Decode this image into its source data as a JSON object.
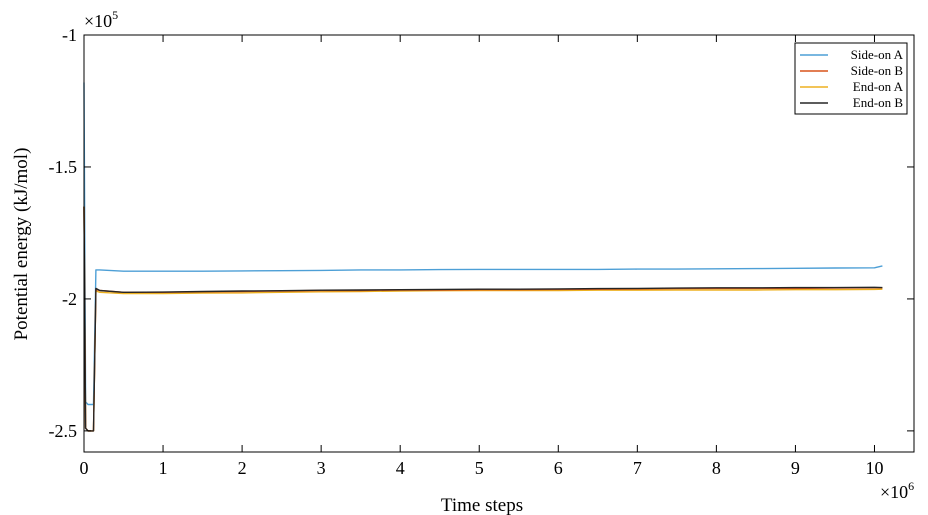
{
  "chart_data": {
    "type": "line",
    "title": "",
    "xlabel": "Time steps",
    "ylabel": "Potential energy (kJ/mol)",
    "x_multiplier_label": "×10",
    "x_multiplier_exp": "6",
    "y_multiplier_label": "×10",
    "y_multiplier_exp": "5",
    "xlim": [
      0,
      10.5
    ],
    "ylim": [
      -2.58,
      -1.0
    ],
    "x_ticks": [
      0,
      1,
      2,
      3,
      4,
      5,
      6,
      7,
      8,
      9,
      10
    ],
    "x_tick_labels": [
      "0",
      "1",
      "2",
      "3",
      "4",
      "5",
      "6",
      "7",
      "8",
      "9",
      "10"
    ],
    "y_ticks": [
      -1.0,
      -1.5,
      -2.0,
      -2.5
    ],
    "y_tick_labels": [
      "-1",
      "-1.5",
      "-2",
      "-2.5"
    ],
    "grid": false,
    "legend_position": "top-right",
    "series": [
      {
        "name": "Side-on A",
        "color": "#4d9fd6",
        "x": [
          0,
          0.02,
          0.05,
          0.12,
          0.15,
          0.2,
          0.5,
          1.0,
          1.5,
          2.0,
          2.5,
          3.0,
          3.5,
          4.0,
          4.5,
          5.0,
          5.5,
          6.0,
          6.5,
          7.0,
          7.5,
          8.0,
          8.5,
          9.0,
          9.5,
          10.0,
          10.1
        ],
        "y": [
          -1.18,
          -2.39,
          -2.4,
          -2.4,
          -1.89,
          -1.89,
          -1.895,
          -1.895,
          -1.895,
          -1.894,
          -1.893,
          -1.892,
          -1.89,
          -1.89,
          -1.889,
          -1.888,
          -1.888,
          -1.888,
          -1.888,
          -1.887,
          -1.887,
          -1.886,
          -1.885,
          -1.884,
          -1.883,
          -1.882,
          -1.875
        ]
      },
      {
        "name": "Side-on B",
        "color": "#d9541a",
        "x": [
          0,
          0.02,
          0.05,
          0.12,
          0.15,
          0.2,
          0.5,
          1.0,
          1.5,
          2.0,
          2.5,
          3.0,
          3.5,
          4.0,
          4.5,
          5.0,
          5.5,
          6.0,
          6.5,
          7.0,
          7.5,
          8.0,
          8.5,
          9.0,
          9.5,
          10.0,
          10.1
        ],
        "y": [
          -1.65,
          -2.49,
          -2.5,
          -2.5,
          -1.965,
          -1.968,
          -1.975,
          -1.975,
          -1.973,
          -1.972,
          -1.97,
          -1.968,
          -1.968,
          -1.966,
          -1.966,
          -1.965,
          -1.965,
          -1.964,
          -1.963,
          -1.962,
          -1.961,
          -1.96,
          -1.96,
          -1.96,
          -1.959,
          -1.958,
          -1.958
        ]
      },
      {
        "name": "End-on A",
        "color": "#edb120",
        "x": [
          0,
          0.02,
          0.05,
          0.12,
          0.15,
          0.2,
          0.5,
          1.0,
          1.5,
          2.0,
          2.5,
          3.0,
          3.5,
          4.0,
          4.5,
          5.0,
          5.5,
          6.0,
          6.5,
          7.0,
          7.5,
          8.0,
          8.5,
          9.0,
          9.5,
          10.0,
          10.1
        ],
        "y": [
          -1.65,
          -2.49,
          -2.5,
          -2.5,
          -1.97,
          -1.975,
          -1.98,
          -1.98,
          -1.978,
          -1.977,
          -1.975,
          -1.973,
          -1.972,
          -1.97,
          -1.969,
          -1.968,
          -1.968,
          -1.968,
          -1.967,
          -1.967,
          -1.966,
          -1.966,
          -1.966,
          -1.965,
          -1.965,
          -1.964,
          -1.963
        ]
      },
      {
        "name": "End-on B",
        "color": "#262626",
        "x": [
          0,
          0.02,
          0.05,
          0.12,
          0.15,
          0.2,
          0.5,
          1.0,
          1.5,
          2.0,
          2.5,
          3.0,
          3.5,
          4.0,
          4.5,
          5.0,
          5.5,
          6.0,
          6.5,
          7.0,
          7.5,
          8.0,
          8.5,
          9.0,
          9.5,
          10.0,
          10.1
        ],
        "y": [
          -1.65,
          -2.49,
          -2.5,
          -2.5,
          -1.96,
          -1.968,
          -1.975,
          -1.974,
          -1.972,
          -1.97,
          -1.969,
          -1.967,
          -1.966,
          -1.965,
          -1.964,
          -1.963,
          -1.963,
          -1.962,
          -1.961,
          -1.96,
          -1.959,
          -1.958,
          -1.958,
          -1.957,
          -1.957,
          -1.956,
          -1.957
        ]
      }
    ]
  }
}
